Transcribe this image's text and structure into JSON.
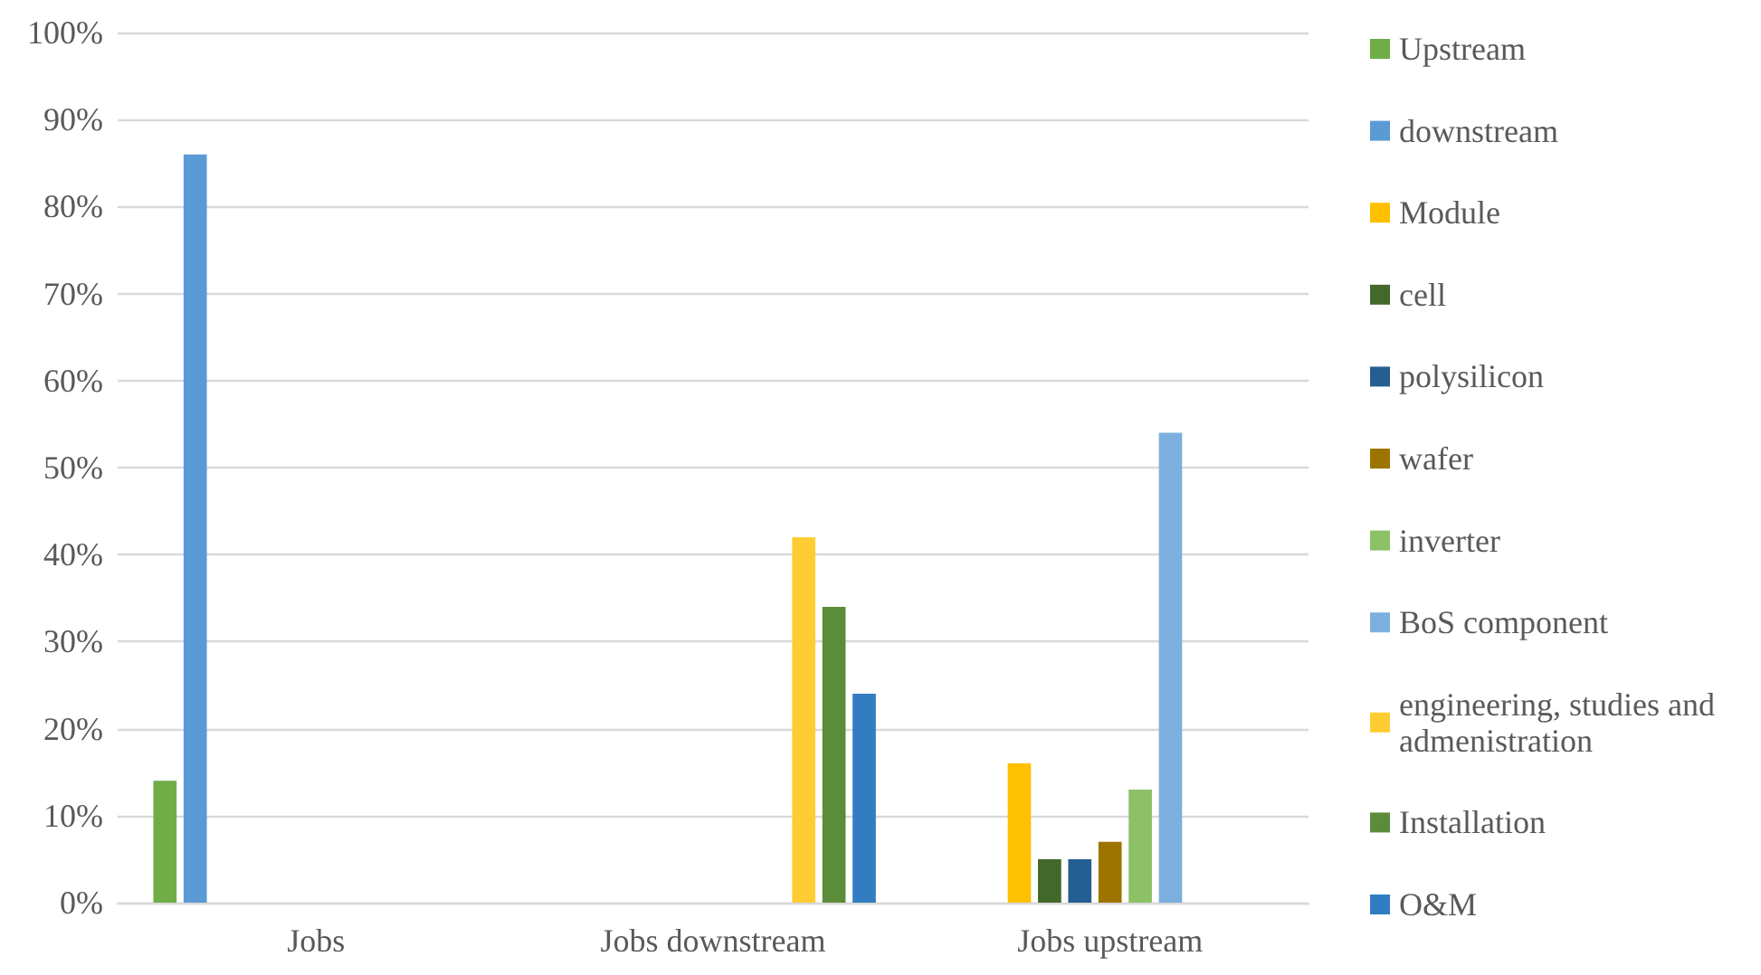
{
  "chart_data": {
    "type": "bar",
    "categories": [
      "Jobs",
      "Jobs downstream",
      "Jobs upstream"
    ],
    "series": [
      {
        "name": "Upstream",
        "color": "#70ad47",
        "values": [
          14,
          0,
          0
        ]
      },
      {
        "name": "downstream",
        "color": "#5b9bd5",
        "values": [
          86,
          0,
          0
        ]
      },
      {
        "name": "Module",
        "color": "#ffc000",
        "values": [
          0,
          0,
          16
        ]
      },
      {
        "name": "cell",
        "color": "#43682b",
        "values": [
          0,
          0,
          5
        ]
      },
      {
        "name": "polysilicon",
        "color": "#255e91",
        "values": [
          0,
          0,
          5
        ]
      },
      {
        "name": "wafer",
        "color": "#9e7400",
        "values": [
          0,
          0,
          7
        ]
      },
      {
        "name": "inverter",
        "color": "#8cc168",
        "values": [
          0,
          0,
          13
        ]
      },
      {
        "name": "BoS component",
        "color": "#7cafdd",
        "values": [
          0,
          0,
          54
        ]
      },
      {
        "name": "engineering, studies and admenistration",
        "color": "#ffcd33",
        "values": [
          0,
          42,
          null
        ]
      },
      {
        "name": "Installation",
        "color": "#5b8c3a",
        "values": [
          0,
          34,
          null
        ]
      },
      {
        "name": "O&M",
        "color": "#327dc2",
        "values": [
          0,
          24,
          null
        ]
      }
    ],
    "ylim": [
      0,
      100
    ],
    "yticks": [
      {
        "value": 0,
        "label": "0%"
      },
      {
        "value": 10,
        "label": "10%"
      },
      {
        "value": 20,
        "label": "20%"
      },
      {
        "value": 30,
        "label": "30%"
      },
      {
        "value": 40,
        "label": "40%"
      },
      {
        "value": 50,
        "label": "50%"
      },
      {
        "value": 60,
        "label": "60%"
      },
      {
        "value": 70,
        "label": "70%"
      },
      {
        "value": 80,
        "label": "80%"
      },
      {
        "value": 90,
        "label": "90%"
      },
      {
        "value": 100,
        "label": "100%"
      }
    ],
    "grid": "y",
    "legend": "right"
  }
}
